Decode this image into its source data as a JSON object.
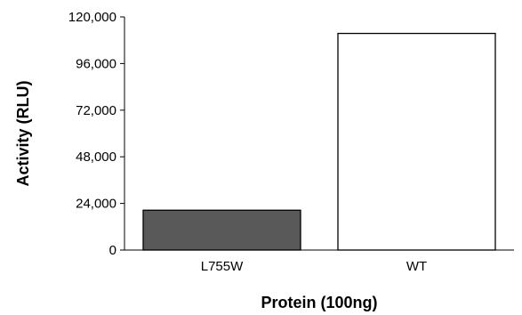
{
  "chart_data": {
    "type": "bar",
    "title": "",
    "xlabel": "Protein (100ng)",
    "ylabel": "Activity (RLU)",
    "categories": [
      "L755W",
      "WT"
    ],
    "values": [
      20500,
      111500
    ],
    "ylim": [
      0,
      120000
    ],
    "yticks": [
      0,
      24000,
      48000,
      72000,
      96000,
      120000
    ],
    "ytick_labels": [
      "0",
      "24,000",
      "48,000",
      "72,000",
      "96,000",
      "120,000"
    ],
    "bar_fill_colors": [
      "#595959",
      "#ffffff"
    ],
    "bar_stroke_color": "#000000",
    "grid": false,
    "legend": "none"
  }
}
